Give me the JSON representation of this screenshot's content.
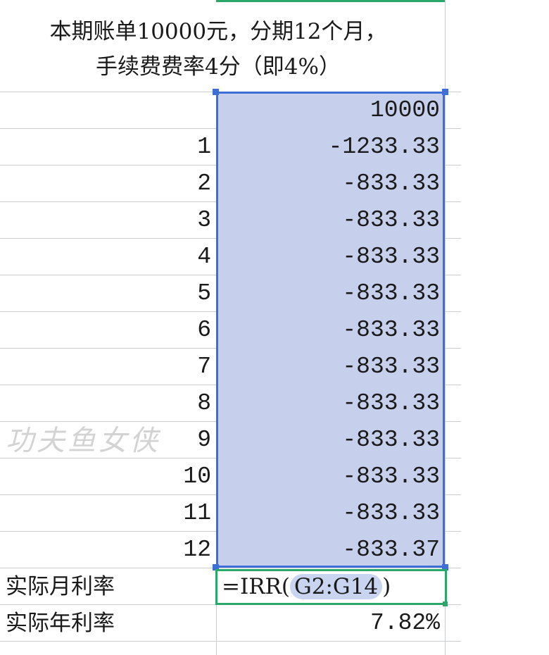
{
  "title": {
    "line1": "本期账单10000元，分期12个月，",
    "line2": "手续费费率4分（即4%）"
  },
  "rows": [
    {
      "period": "",
      "value": "10000"
    },
    {
      "period": "1",
      "value": "-1233.33"
    },
    {
      "period": "2",
      "value": "-833.33"
    },
    {
      "period": "3",
      "value": "-833.33"
    },
    {
      "period": "4",
      "value": "-833.33"
    },
    {
      "period": "5",
      "value": "-833.33"
    },
    {
      "period": "6",
      "value": "-833.33"
    },
    {
      "period": "7",
      "value": "-833.33"
    },
    {
      "period": "8",
      "value": "-833.33"
    },
    {
      "period": "9",
      "value": "-833.33"
    },
    {
      "period": "10",
      "value": "-833.33"
    },
    {
      "period": "11",
      "value": "-833.33"
    },
    {
      "period": "12",
      "value": "-833.37"
    }
  ],
  "monthly": {
    "label": "实际月利率",
    "formula_prefix": "=IRR(",
    "formula_range": "G2:G14",
    "formula_suffix": ")"
  },
  "annual": {
    "label": "实际年利率",
    "value": "7.82%"
  },
  "watermark": "功夫鱼女侠",
  "colors": {
    "selection": "#c6d0ec",
    "selection_border": "#3e6fd6",
    "active_border": "#2aa86a"
  }
}
